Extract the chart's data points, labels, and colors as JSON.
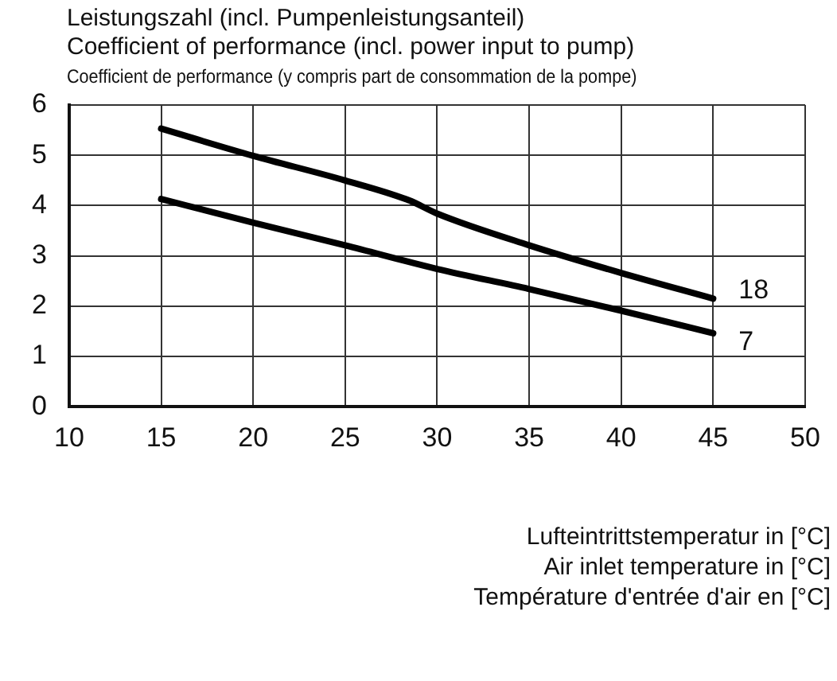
{
  "chart_data": {
    "type": "line",
    "ylabel": "Leistungszahl (incl. Pumpenleistungsanteil)\nCoefficient of performance (incl. power input to pump)\nCoefficient de performance (y compris part de consommation de la pompe)",
    "xlabel": "Lufteintrittstemperatur in [°C]\nAir inlet temperature in [°C]\nTempérature d'entrée d'air en [°C]",
    "xlim": [
      10,
      50
    ],
    "xticks": [
      10,
      15,
      20,
      25,
      30,
      35,
      40,
      45,
      50
    ],
    "ylim": [
      0,
      6
    ],
    "yticks": [
      0,
      1,
      2,
      3,
      4,
      5,
      6
    ],
    "grid": true,
    "legend": false,
    "marker": "none",
    "line_style": "solid",
    "series": [
      {
        "name": "18",
        "color": "#000000",
        "x": [
          15,
          20,
          25,
          28.5,
          30,
          35,
          40,
          45
        ],
        "values": [
          5.53,
          4.99,
          4.5,
          4.1,
          3.84,
          3.21,
          2.66,
          2.15
        ]
      },
      {
        "name": "7",
        "color": "#000000",
        "x": [
          15,
          20,
          25,
          30,
          35,
          40,
          45
        ],
        "values": [
          4.13,
          3.66,
          3.21,
          2.74,
          2.34,
          1.91,
          1.46
        ]
      }
    ]
  }
}
